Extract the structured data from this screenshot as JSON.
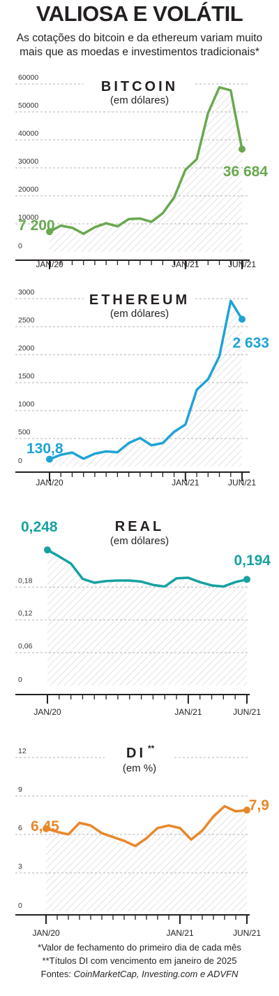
{
  "header": {
    "title": "VALIOSA E VOLÁTIL",
    "subtitle_line1": "As cotações do bitcoin e da ethereum variam muito",
    "subtitle_line2": "mais que as moedas e investimentos tradicionais*"
  },
  "colors": {
    "bitcoin": "#6aa84f",
    "ethereum": "#1fa3d6",
    "real": "#17a1a1",
    "di": "#e8872a",
    "grid": "#b3b3b3",
    "axis": "#231f20",
    "hatch": "#c8c8c8"
  },
  "chart_data": [
    {
      "id": "bitcoin",
      "type": "area",
      "title": "BITCOIN",
      "unit_label": "(em dólares)",
      "ylim": [
        0,
        60000
      ],
      "yticks": [
        "0",
        "10000",
        "20000",
        "30000",
        "40000",
        "50000",
        "60000"
      ],
      "xtick_labels": [
        "JAN/20",
        "JAN/21",
        "JUN/21"
      ],
      "start_label": "7 200",
      "end_label": "36 684",
      "values": [
        7200,
        9350,
        8600,
        6450,
        8800,
        10200,
        9100,
        11700,
        11900,
        10700,
        13800,
        19400,
        29300,
        33100,
        49600,
        58800,
        57700,
        36684
      ]
    },
    {
      "id": "ethereum",
      "type": "area",
      "title": "ETHEREUM",
      "unit_label": "(em dólares)",
      "ylim": [
        0,
        3000
      ],
      "yticks": [
        "0",
        "500",
        "1000",
        "1500",
        "2000",
        "2500",
        "3000"
      ],
      "xtick_labels": [
        "JAN/20",
        "JAN/21",
        "JUN/21"
      ],
      "start_label": "130,8",
      "end_label": "2 633",
      "values": [
        130.8,
        210,
        250,
        140,
        230,
        270,
        255,
        420,
        510,
        380,
        420,
        620,
        750,
        1370,
        1560,
        1970,
        2960,
        2633
      ]
    },
    {
      "id": "real",
      "type": "area",
      "title": "REAL",
      "unit_label": "(em dólares)",
      "ylim": [
        0,
        0.27
      ],
      "yticks": [
        "0",
        "0,06",
        "0,12",
        "0,18"
      ],
      "ytick_values": [
        0,
        0.06,
        0.12,
        0.18
      ],
      "xtick_labels": [
        "JAN/20",
        "JAN/21",
        "JUN/21"
      ],
      "start_label": "0,248",
      "end_label": "0,194",
      "values": [
        0.248,
        0.236,
        0.223,
        0.195,
        0.188,
        0.191,
        0.192,
        0.192,
        0.19,
        0.184,
        0.181,
        0.196,
        0.197,
        0.189,
        0.183,
        0.181,
        0.189,
        0.194
      ]
    },
    {
      "id": "di",
      "type": "area",
      "title": "DI",
      "title_superscript": "**",
      "unit_label": "(em %)",
      "ylim": [
        0,
        12
      ],
      "yticks": [
        "0",
        "3",
        "6",
        "9",
        "12"
      ],
      "ytick_values": [
        0,
        3,
        6,
        9,
        12
      ],
      "xtick_labels": [
        "JAN/20",
        "JAN/21",
        "JUN/21"
      ],
      "start_label": "6,45",
      "end_label": "7,9",
      "values": [
        6.45,
        6.2,
        6.0,
        6.9,
        6.7,
        6.1,
        5.8,
        5.5,
        5.1,
        5.7,
        6.5,
        6.7,
        6.5,
        5.6,
        6.3,
        7.4,
        8.2,
        7.8,
        7.9
      ]
    }
  ],
  "footnotes": {
    "line1": "*Valor de fechamento do primeiro dia de cada mês",
    "line2": "**Títulos DI com vencimento em janeiro de 2025",
    "line3_prefix": "Fontes: ",
    "line3_sources": "CoinMarketCap, Investing.com e ADVFN"
  }
}
